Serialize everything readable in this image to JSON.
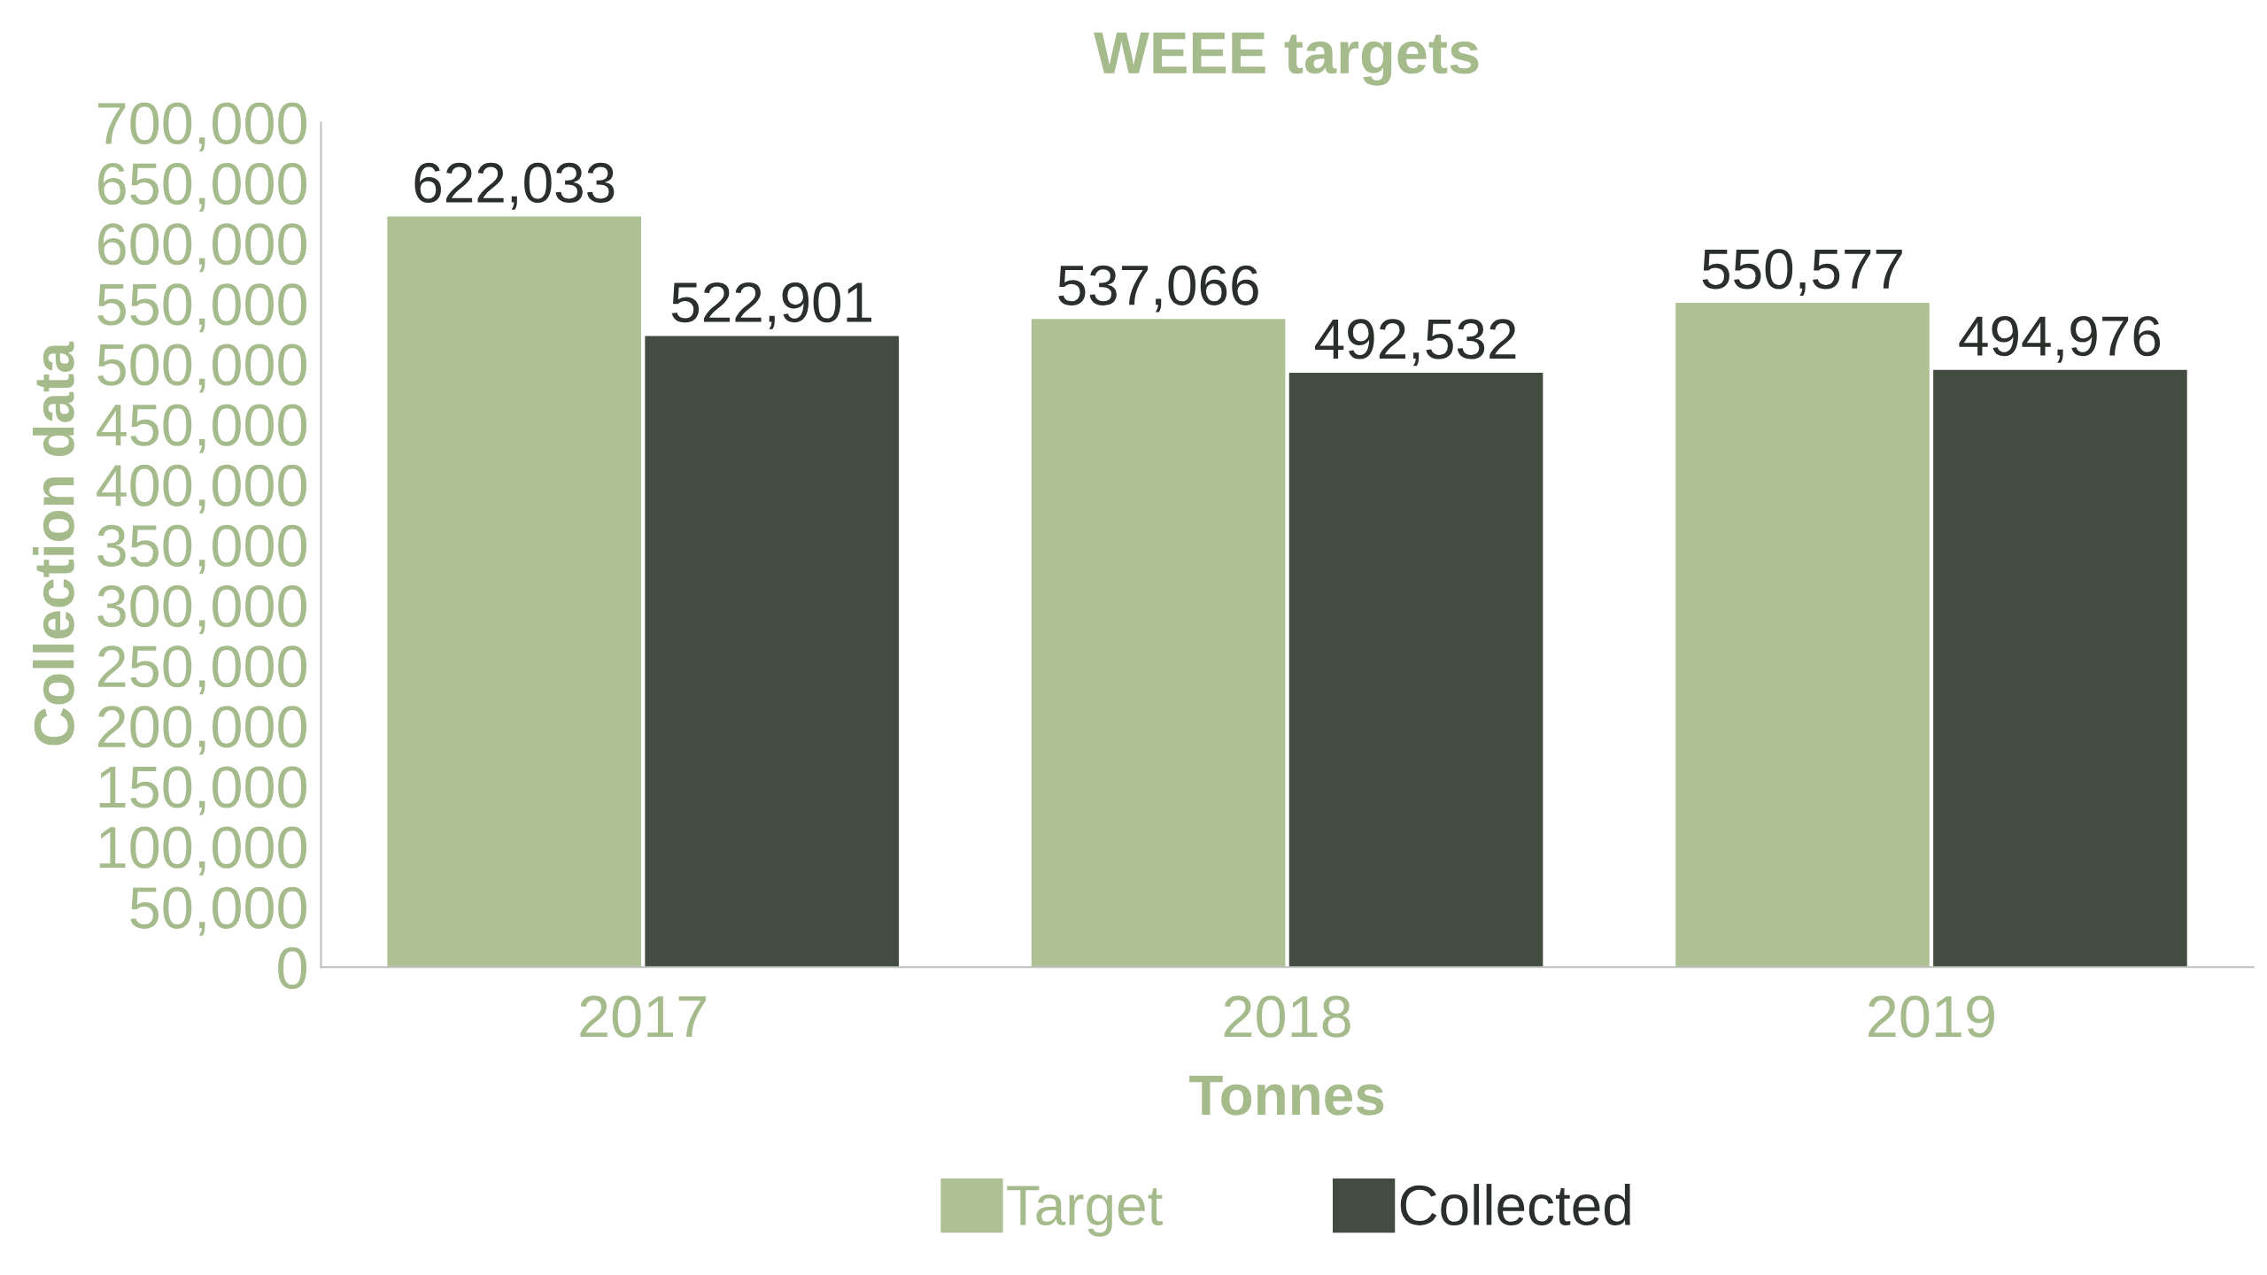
{
  "chart_data": {
    "type": "bar",
    "title": "WEEE targets",
    "xlabel": "Tonnes",
    "ylabel": "Collection data",
    "categories": [
      "2017",
      "2018",
      "2019"
    ],
    "series": [
      {
        "name": "Target",
        "color": "#adc194",
        "values": [
          622033,
          537066,
          550577
        ],
        "value_labels": [
          "622,033",
          "537,066",
          "550,577"
        ]
      },
      {
        "name": "Collected",
        "color": "#434c40",
        "values": [
          522901,
          492532,
          494976
        ],
        "value_labels": [
          "522,901",
          "492,532",
          "494,976"
        ]
      }
    ],
    "ylim": [
      0,
      700000
    ],
    "yticks": [
      {
        "value": 0,
        "label": "0"
      },
      {
        "value": 50000,
        "label": "50,000"
      },
      {
        "value": 100000,
        "label": "100,000"
      },
      {
        "value": 150000,
        "label": "150,000"
      },
      {
        "value": 200000,
        "label": "200,000"
      },
      {
        "value": 250000,
        "label": "250,000"
      },
      {
        "value": 300000,
        "label": "300,000"
      },
      {
        "value": 350000,
        "label": "350,000"
      },
      {
        "value": 400000,
        "label": "400,000"
      },
      {
        "value": 450000,
        "label": "450,000"
      },
      {
        "value": 500000,
        "label": "500,000"
      },
      {
        "value": 550000,
        "label": "550,000"
      },
      {
        "value": 600000,
        "label": "600,000"
      },
      {
        "value": 650000,
        "label": "650,000"
      },
      {
        "value": 700000,
        "label": "700,000"
      }
    ],
    "grid": false,
    "legend": "bottom"
  }
}
